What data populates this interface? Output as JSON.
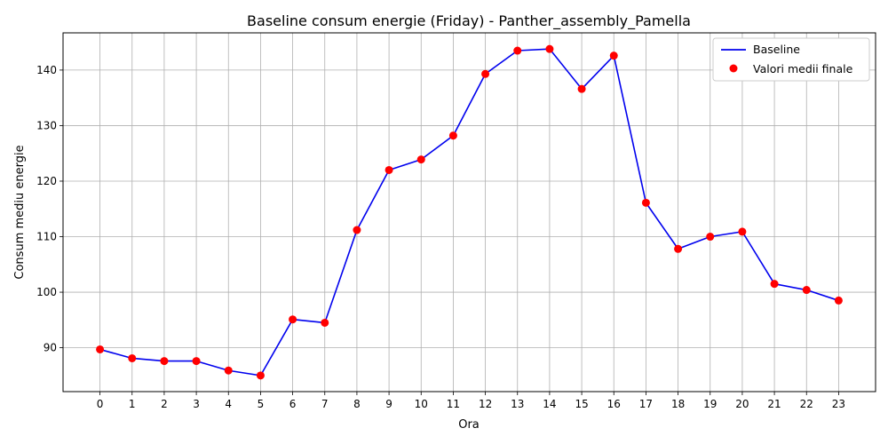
{
  "chart_data": {
    "type": "line",
    "title": "Baseline consum energie (Friday) - Panther_assembly_Pamella",
    "xlabel": "Ora",
    "ylabel": "Consum mediu energie",
    "x": [
      0,
      1,
      2,
      3,
      4,
      5,
      6,
      7,
      8,
      9,
      10,
      11,
      12,
      13,
      14,
      15,
      16,
      17,
      18,
      19,
      20,
      21,
      22,
      23
    ],
    "x_ticks": [
      "0",
      "1",
      "2",
      "3",
      "4",
      "5",
      "6",
      "7",
      "8",
      "9",
      "10",
      "11",
      "12",
      "13",
      "14",
      "15",
      "16",
      "17",
      "18",
      "19",
      "20",
      "21",
      "22",
      "23"
    ],
    "y_ticks": [
      90,
      100,
      110,
      120,
      130,
      140
    ],
    "xlim": [
      -1.15,
      24.15
    ],
    "ylim": [
      82.1,
      146.7
    ],
    "grid": true,
    "legend_position": "top-right",
    "series": [
      {
        "name": "Baseline",
        "kind": "line",
        "color": "#0000ee",
        "values": [
          89.7,
          88.1,
          87.6,
          87.6,
          85.9,
          85.0,
          95.1,
          94.5,
          111.2,
          122.0,
          123.9,
          128.2,
          139.3,
          143.5,
          143.8,
          136.6,
          142.6,
          116.1,
          107.8,
          110.0,
          110.9,
          101.5,
          100.4,
          98.5
        ]
      },
      {
        "name": "Valori medii finale",
        "kind": "scatter",
        "color": "#ff0000",
        "values": [
          89.7,
          88.1,
          87.6,
          87.6,
          85.9,
          85.0,
          95.1,
          94.5,
          111.2,
          122.0,
          123.9,
          128.2,
          139.3,
          143.5,
          143.8,
          136.6,
          142.6,
          116.1,
          107.8,
          110.0,
          110.9,
          101.5,
          100.4,
          98.5
        ]
      }
    ]
  }
}
